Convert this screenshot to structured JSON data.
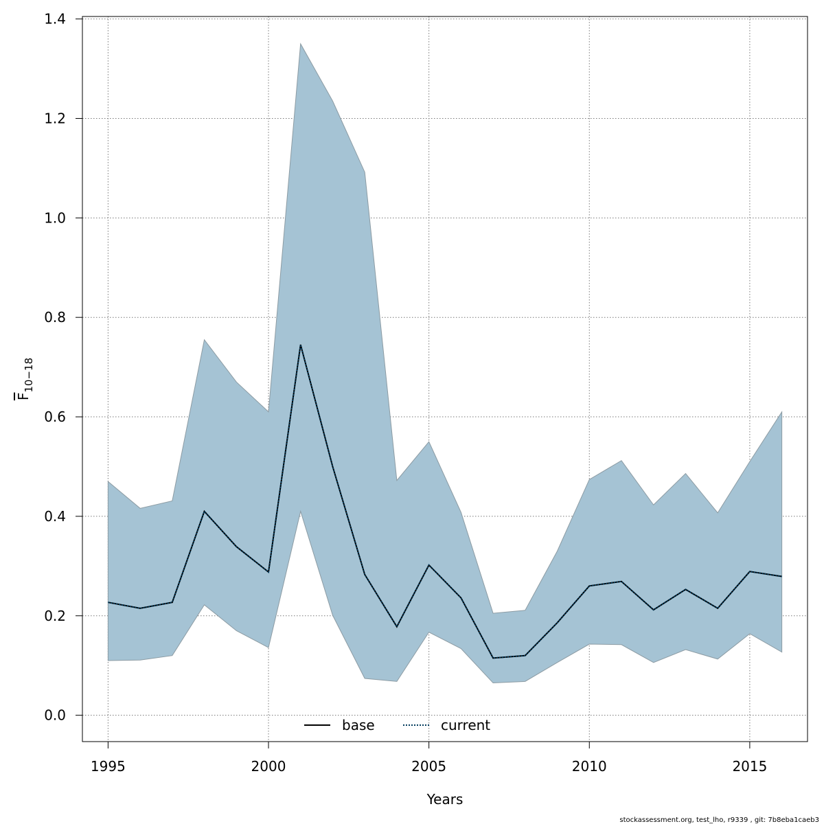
{
  "chart_data": {
    "type": "line",
    "xlabel": "Years",
    "ylabel": {
      "main": "F",
      "sub": "10−18"
    },
    "xlim": [
      1994.2,
      2016.8
    ],
    "ylim": [
      -0.053,
      1.405
    ],
    "xticks": [
      1995,
      2000,
      2005,
      2010,
      2015
    ],
    "yticks": [
      0.0,
      0.2,
      0.4,
      0.6,
      0.8,
      1.0,
      1.2,
      1.4
    ],
    "ytick_labels": [
      "0.0",
      "0.2",
      "0.4",
      "0.6",
      "0.8",
      "1.0",
      "1.2",
      "1.4"
    ],
    "grid": true,
    "legend_position": "bottom-center",
    "x": [
      1995,
      1996,
      1997,
      1998,
      1999,
      2000,
      2001,
      2002,
      2003,
      2004,
      2005,
      2006,
      2007,
      2008,
      2009,
      2010,
      2011,
      2012,
      2013,
      2014,
      2015,
      2016
    ],
    "band": {
      "upper": [
        0.47,
        0.416,
        0.431,
        0.755,
        0.67,
        0.61,
        1.35,
        1.235,
        1.092,
        0.472,
        0.55,
        0.408,
        0.205,
        0.211,
        0.33,
        0.474,
        0.512,
        0.423,
        0.486,
        0.407,
        0.51,
        0.61
      ],
      "lower": [
        0.11,
        0.111,
        0.12,
        0.222,
        0.17,
        0.136,
        0.41,
        0.201,
        0.074,
        0.068,
        0.167,
        0.134,
        0.065,
        0.068,
        0.106,
        0.143,
        0.142,
        0.106,
        0.132,
        0.113,
        0.164,
        0.127
      ],
      "fill": "#a5c3d4",
      "stroke": "#8c9ba3"
    },
    "series": [
      {
        "name": "base",
        "style": "solid",
        "color": "#000000",
        "values": [
          0.227,
          0.215,
          0.227,
          0.41,
          0.339,
          0.288,
          0.745,
          0.5,
          0.283,
          0.178,
          0.302,
          0.236,
          0.115,
          0.12,
          0.186,
          0.26,
          0.269,
          0.212,
          0.253,
          0.215,
          0.289,
          0.279
        ]
      },
      {
        "name": "current",
        "style": "dotted",
        "color": "#003a5c",
        "values": [
          0.227,
          0.215,
          0.227,
          0.41,
          0.339,
          0.288,
          0.745,
          0.5,
          0.283,
          0.178,
          0.302,
          0.236,
          0.115,
          0.12,
          0.186,
          0.26,
          0.269,
          0.212,
          0.253,
          0.215,
          0.289,
          0.279
        ]
      }
    ]
  },
  "footer": "stockassessment.org, test_lho, r9339 , git: 7b8eba1caeb3"
}
